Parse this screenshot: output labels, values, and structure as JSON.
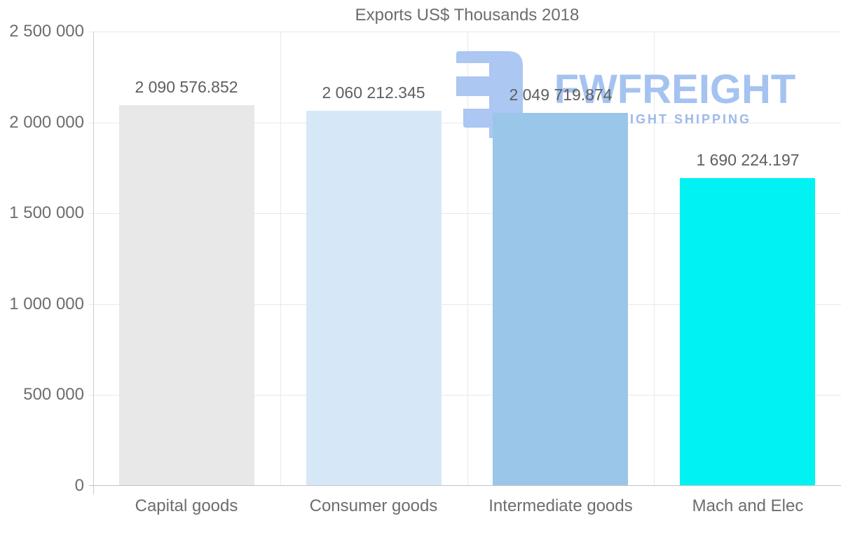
{
  "chart_data": {
    "type": "bar",
    "title": "Exports US$ Thousands 2018",
    "categories": [
      "Capital goods",
      "Consumer goods",
      "Intermediate goods",
      "Mach and Elec"
    ],
    "values": [
      2090576.852,
      2060212.345,
      2049719.874,
      1690224.197
    ],
    "value_labels": [
      "2 090 576.852",
      "2 060 212.345",
      "2 049 719.874",
      "1 690 224.197"
    ],
    "bar_colors": [
      "#e8e8e8",
      "#d6e8f8",
      "#9ac6e9",
      "#00f2f2"
    ],
    "y_ticks": [
      {
        "label": "2 500 000",
        "value": 2500000
      },
      {
        "label": "2 000 000",
        "value": 2000000
      },
      {
        "label": "1 500 000",
        "value": 1500000
      },
      {
        "label": "1 000 000",
        "value": 1000000
      },
      {
        "label": "500 000",
        "value": 500000
      },
      {
        "label": "0",
        "value": 0
      }
    ],
    "ylim": [
      0,
      2500000
    ],
    "xlabel": "",
    "ylabel": "",
    "grid": "horizontal gridlines with vertical category separators",
    "legend": "none"
  },
  "watermark": {
    "logo_text": "FWFREIGHT",
    "tagline": "FREIGHT SHIPPING",
    "color": "#a5c3f0"
  },
  "colors": {
    "background": "#ffffff",
    "text": "#6d6d6d",
    "value_text": "#5f5f5f",
    "gridline": "#e8e8e8",
    "axis_line": "#c9c9c9"
  }
}
